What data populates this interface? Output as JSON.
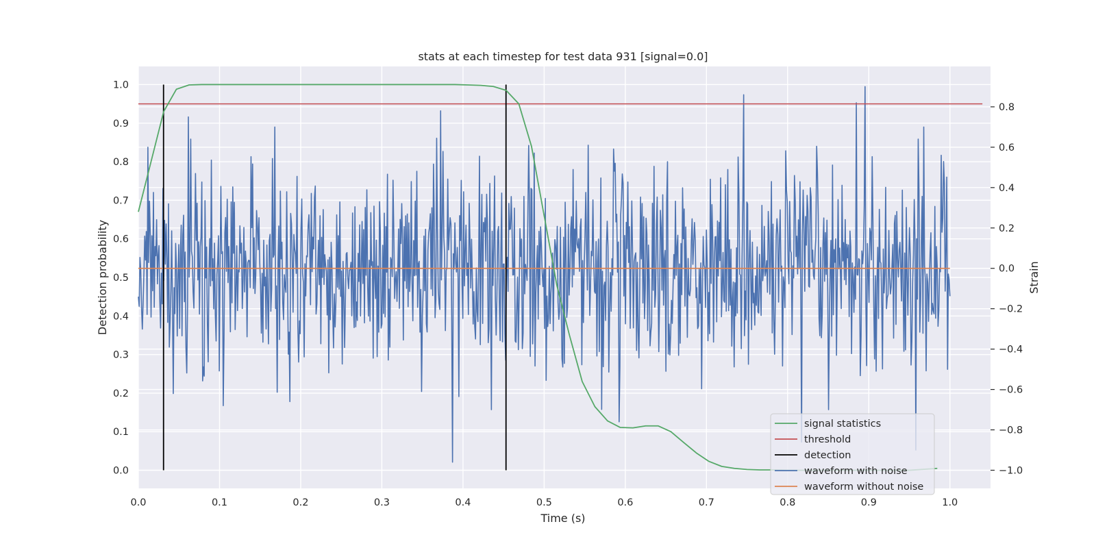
{
  "chart_data": {
    "type": "line",
    "title": "stats at each timestep for test data 931 [signal=0.0]",
    "xlabel": "Time (s)",
    "ylabel": "Detection probability",
    "y2label": "Strain",
    "xlim": [
      0.0,
      1.05
    ],
    "ylim": [
      -0.047,
      1.047
    ],
    "y2lim": [
      -1.09,
      1.0
    ],
    "xticks": [
      "0.0",
      "0.1",
      "0.2",
      "0.3",
      "0.4",
      "0.5",
      "0.6",
      "0.7",
      "0.8",
      "0.9",
      "1.0"
    ],
    "yticks": [
      "0.0",
      "0.1",
      "0.2",
      "0.3",
      "0.4",
      "0.5",
      "0.6",
      "0.7",
      "0.8",
      "0.9",
      "1.0"
    ],
    "y2ticks": [
      "−1.0",
      "−0.8",
      "−0.6",
      "−0.4",
      "−0.2",
      "0.0",
      "0.2",
      "0.4",
      "0.6",
      "0.8"
    ],
    "grid": true,
    "legend_position": "lower right",
    "colors": {
      "background": "#eaeaf2",
      "grid": "#ffffff",
      "signal": "#55a868",
      "threshold": "#c44e52",
      "detection": "#000000",
      "noisy": "#4c72b0",
      "clean": "#dd8452"
    },
    "legend": [
      "signal statistics",
      "threshold",
      "detection",
      "waveform with noise",
      "waveform without noise"
    ],
    "signal_statistics": {
      "x": [
        0.0,
        0.0156,
        0.0312,
        0.0469,
        0.0625,
        0.0781,
        0.0938,
        0.1094,
        0.125,
        0.2,
        0.3,
        0.39,
        0.406,
        0.422,
        0.4375,
        0.4531,
        0.4688,
        0.4844,
        0.5,
        0.5156,
        0.5312,
        0.5469,
        0.5625,
        0.5781,
        0.5938,
        0.6094,
        0.625,
        0.6406,
        0.6562,
        0.6719,
        0.6875,
        0.7031,
        0.7188,
        0.7344,
        0.75,
        0.7656,
        0.7812,
        0.8,
        0.85,
        0.9,
        0.95,
        0.9844
      ],
      "y": [
        0.67,
        0.8,
        0.93,
        0.988,
        0.999,
        1.0,
        1.0,
        1.0,
        1.0,
        1.0,
        1.0,
        1.0,
        0.999,
        0.998,
        0.995,
        0.985,
        0.95,
        0.84,
        0.66,
        0.48,
        0.35,
        0.23,
        0.165,
        0.128,
        0.111,
        0.11,
        0.115,
        0.115,
        0.1,
        0.072,
        0.045,
        0.023,
        0.01,
        0.005,
        0.002,
        0.001,
        0.001,
        0.0,
        0.0,
        0.0,
        0.0,
        0.005
      ]
    },
    "threshold": {
      "y": 0.95,
      "x_range": [
        0.0,
        1.04
      ]
    },
    "detection": {
      "x": [
        0.031,
        0.453
      ],
      "y_range": [
        0.0,
        1.0
      ]
    },
    "waveform_without_noise": {
      "x_range": [
        0.0,
        1.0
      ],
      "y": 0.0
    },
    "waveform_with_noise": {
      "x_start": 0.0,
      "x_end": 1.0,
      "n": 1024,
      "std": 0.24,
      "y_range": [
        -1.0,
        1.0
      ],
      "extremes": [
        {
          "x": 0.387,
          "y": -0.96
        },
        {
          "x": 0.372,
          "y": 0.78
        },
        {
          "x": 0.746,
          "y": 0.86
        },
        {
          "x": 0.885,
          "y": 0.82
        },
        {
          "x": 0.895,
          "y": 0.9
        },
        {
          "x": 0.961,
          "y": 0.64
        },
        {
          "x": 0.817,
          "y": -0.86
        },
        {
          "x": 0.958,
          "y": -0.9
        },
        {
          "x": 0.592,
          "y": -0.76
        },
        {
          "x": 0.062,
          "y": 0.75
        },
        {
          "x": 0.065,
          "y": 0.64
        },
        {
          "x": 0.012,
          "y": 0.6
        },
        {
          "x": 0.105,
          "y": -0.68
        },
        {
          "x": 0.187,
          "y": -0.66
        },
        {
          "x": 0.349,
          "y": -0.61
        },
        {
          "x": 0.554,
          "y": 0.61
        },
        {
          "x": 0.043,
          "y": -0.62
        },
        {
          "x": 0.989,
          "y": 0.56
        },
        {
          "x": 0.997,
          "y": -0.5
        }
      ]
    }
  }
}
